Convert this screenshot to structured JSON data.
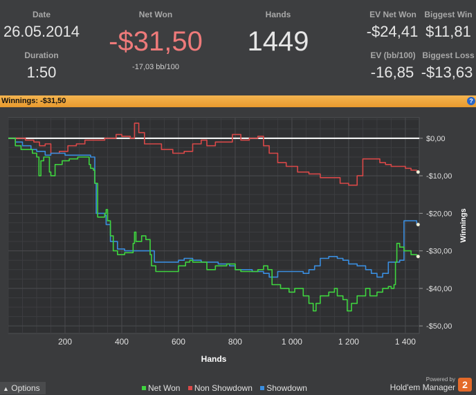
{
  "stats": {
    "date_label": "Date",
    "date_value": "26.05.2014",
    "duration_label": "Duration",
    "duration_value": "1:50",
    "netwon_label": "Net Won",
    "netwon_value": "-$31,50",
    "netwon_sub": "-17,03 bb/100",
    "hands_label": "Hands",
    "hands_value": "1449",
    "evnet_label": "EV Net Won",
    "evnet_value": "-$24,41",
    "evbb_label": "EV (bb/100)",
    "evbb_value": "-16,85",
    "bigwin_label": "Biggest Win",
    "bigwin_value": "$11,81",
    "bigloss_label": "Biggest Loss",
    "bigloss_value": "-$13,63"
  },
  "colors": {
    "loss": "#ee7a7a",
    "netwon": "#3fd43f",
    "nonshowdown": "#d94848",
    "showdown": "#3a8ee0"
  },
  "winnings_bar": {
    "text": "Winnings:  -$31,50",
    "help": "?"
  },
  "chart_data": {
    "type": "line",
    "xlabel": "Hands",
    "ylabel": "Winnings",
    "xlim": [
      0,
      1449
    ],
    "ylim": [
      -52,
      5.5
    ],
    "x_ticks": [
      200,
      400,
      600,
      800,
      1000,
      1200,
      1400
    ],
    "x_tick_labels": [
      "200",
      "400",
      "600",
      "800",
      "1 000",
      "1 200",
      "1 400"
    ],
    "y_ticks": [
      0,
      -10,
      -20,
      -30,
      -40,
      -50
    ],
    "y_tick_labels": [
      "$0,00",
      "-$10,00",
      "-$20,00",
      "-$30,00",
      "-$40,00",
      "-$50,00"
    ],
    "grid": true,
    "legend": "bottom",
    "series": [
      {
        "name": "Net Won",
        "color": "#3fd43f",
        "x": [
          0,
          25,
          45,
          85,
          100,
          108,
          115,
          125,
          145,
          150,
          165,
          190,
          215,
          245,
          275,
          285,
          290,
          300,
          305,
          315,
          340,
          345,
          350,
          360,
          370,
          385,
          410,
          440,
          445,
          450,
          470,
          485,
          500,
          505,
          520,
          550,
          600,
          625,
          640,
          650,
          680,
          700,
          730,
          770,
          800,
          820,
          850,
          880,
          900,
          915,
          930,
          960,
          990,
          1010,
          1040,
          1060,
          1075,
          1085,
          1100,
          1130,
          1150,
          1160,
          1180,
          1195,
          1210,
          1230,
          1260,
          1275,
          1300,
          1320,
          1340,
          1350,
          1360,
          1365,
          1370,
          1380,
          1395,
          1420,
          1440
        ],
        "y": [
          0,
          -2,
          -3,
          -4,
          -5,
          -10,
          -6,
          -5,
          -9,
          -10,
          -7,
          -6,
          -5.5,
          -5,
          -5,
          -7,
          -8,
          -8.5,
          -12,
          -21,
          -20,
          -19,
          -22,
          -26,
          -30,
          -31,
          -30.5,
          -28,
          -25,
          -27.5,
          -26,
          -27,
          -31,
          -34,
          -35.5,
          -35.5,
          -34,
          -33,
          -32.5,
          -33,
          -33,
          -35,
          -34,
          -33.5,
          -35,
          -35.5,
          -35.5,
          -35,
          -34,
          -35,
          -39,
          -40,
          -41,
          -40,
          -42,
          -44,
          -46,
          -44,
          -42,
          -41,
          -40,
          -42,
          -43,
          -46,
          -44,
          -42,
          -40,
          -42,
          -41,
          -40,
          -39.5,
          -40,
          -39,
          -33,
          -28,
          -29,
          -30,
          -31,
          -31.5
        ]
      },
      {
        "name": "Non Showdown",
        "color": "#d94848",
        "x": [
          0,
          30,
          60,
          90,
          110,
          130,
          150,
          180,
          210,
          240,
          270,
          300,
          340,
          380,
          400,
          430,
          445,
          460,
          480,
          510,
          540,
          580,
          620,
          650,
          680,
          700,
          730,
          760,
          790,
          820,
          850,
          880,
          900,
          920,
          950,
          980,
          1020,
          1060,
          1100,
          1140,
          1170,
          1200,
          1230,
          1250,
          1270,
          1290,
          1310,
          1330,
          1350,
          1380,
          1400,
          1420,
          1440
        ],
        "y": [
          0,
          0,
          -0.5,
          -1,
          -2,
          -1.5,
          -4,
          -3.5,
          -2,
          -1.5,
          -0.5,
          -0.5,
          0,
          1,
          0.5,
          0,
          4,
          1.5,
          -1.5,
          -1.5,
          -3,
          -4,
          -3.5,
          -1.5,
          -0.5,
          -2,
          -1,
          -1,
          1,
          -0.5,
          0,
          0.5,
          -2,
          -4,
          -6.5,
          -7.5,
          -9,
          -9.5,
          -10.5,
          -10.5,
          -12,
          -12.5,
          -10,
          -5.5,
          -5.5,
          -5.5,
          -6.5,
          -7,
          -7.5,
          -7.5,
          -8,
          -8.5,
          -9
        ]
      },
      {
        "name": "Showdown",
        "color": "#3a8ee0",
        "x": [
          0,
          25,
          50,
          80,
          100,
          130,
          150,
          180,
          200,
          230,
          260,
          290,
          300,
          305,
          310,
          340,
          345,
          360,
          385,
          410,
          450,
          500,
          515,
          540,
          600,
          620,
          650,
          680,
          700,
          740,
          780,
          800,
          830,
          860,
          880,
          900,
          920,
          950,
          1000,
          1040,
          1060,
          1080,
          1100,
          1130,
          1160,
          1180,
          1200,
          1230,
          1260,
          1280,
          1300,
          1320,
          1340,
          1360,
          1370,
          1380,
          1395,
          1440
        ],
        "y": [
          0,
          -1,
          -2,
          -3,
          -3.5,
          -4.5,
          -4,
          -4,
          -4.5,
          -4.5,
          -4.5,
          -5,
          -5,
          -12,
          -20,
          -20.5,
          -23,
          -27.5,
          -29.5,
          -30,
          -30,
          -30,
          -33,
          -33,
          -32.5,
          -32,
          -32.5,
          -33,
          -33,
          -33.5,
          -34,
          -35,
          -35,
          -35.5,
          -35.5,
          -36,
          -37,
          -35.5,
          -35.5,
          -36,
          -35,
          -34,
          -32,
          -31.5,
          -32,
          -32.5,
          -33.5,
          -34,
          -35,
          -36,
          -37,
          -36,
          -33,
          -33,
          -33,
          -32.5,
          -22,
          -23
        ]
      }
    ]
  },
  "legend_items": [
    "Net Won",
    "Non Showdown",
    "Showdown"
  ],
  "footer": {
    "options_label": "Options",
    "powered": "Powered by",
    "brand": "Hold'em Manager",
    "badge": "2"
  }
}
